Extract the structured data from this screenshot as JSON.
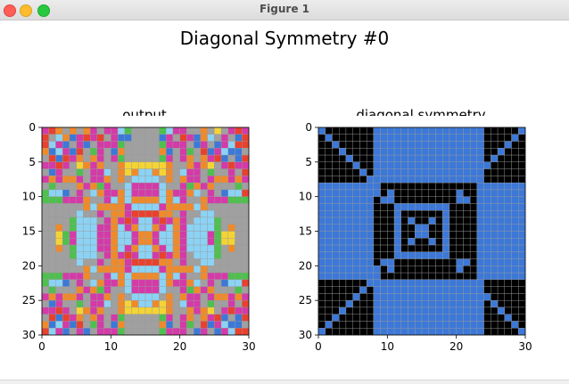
{
  "window": {
    "title": "Figure 1",
    "buttons": [
      "close-button",
      "minimize-button",
      "zoom-button"
    ]
  },
  "figure": {
    "suptitle": "Diagonal Symmetry #0"
  },
  "palette": {
    "0": "#000000",
    "1": "#3c78d8",
    "2": "#e8412e",
    "3": "#4ec04e",
    "4": "#f4d435",
    "5": "#a0a0a0",
    "6": "#d43aa8",
    "7": "#ef8a2b",
    "8": "#8bd3f5",
    "9": "#8b1a1a"
  },
  "chart_data": [
    {
      "type": "heatmap",
      "title": "output",
      "xlim": [
        0,
        30
      ],
      "ylim": [
        30,
        0
      ],
      "xticks": [
        0,
        10,
        20,
        30
      ],
      "yticks": [
        0,
        5,
        10,
        15,
        20,
        25,
        30
      ],
      "size": 30,
      "cells": [
        "627575765668355553866557545626",
        "258716262561155551652617856512",
        "286156156663555553666516516822",
        "718612536517555557156352168115",
        "521267576563555553656757621512",
        "662654767557444444755767456266",
        "516553566857478874758665355652",
        "676776566757588885757665677676",
        "535557673655866668556376755535",
        "388156587667866668766785651882",
        "333666755687877778786557666333",
        "555555787777688886777787555555",
        "555558556577622227756558855555",
        "555538885676268862676588835555",
        "557538886678678876876888835755",
        "554368886678867768876888634455",
        "554368886678867768876888634455",
        "557538886678678876876888835755",
        "555538885676268862676588835555",
        "555558556577622227756558855555",
        "555555787777688886777787555555",
        "333666755687877778786557666333",
        "388156587667866668766785651882",
        "535557673655866668556376755535",
        "676776566757588885757665677676",
        "516553566857478874758665355652",
        "662654767557444444755767456266",
        "521267576563555553656757621512",
        "718612536517555557156352168115",
        "286156156663555553666516516822"
      ]
    },
    {
      "type": "heatmap",
      "title": "diagonal symmetry",
      "xlim": [
        0,
        30
      ],
      "ylim": [
        30,
        0
      ],
      "xticks": [
        0,
        10,
        20,
        30
      ],
      "yticks": [
        0,
        5,
        10,
        15,
        20,
        25,
        30
      ],
      "size": 30,
      "cells": [
        "100000001111111111111111000001",
        "010000001111111111111111000010",
        "001000001111111111111111000100",
        "000100001111111111111111001000",
        "000010001111111111111111010000",
        "000001001111111111111111100000",
        "000000101111111111111111000000",
        "000000011111111111111111000000",
        "111111111000000000000001111111",
        "111111111010000000001001111111",
        "111111110110000000001101111111",
        "111111110001111111100001111111",
        "111111110001000000100001111111",
        "111111110001010010100001111111",
        "111111110001001100100001111111",
        "111111110001001100100001111111",
        "111111110001010010100001111111",
        "111111110001000000100001111111",
        "111111110001111111100001111111",
        "111111110110000000001101111111",
        "111111111010000000001001111111",
        "111111111000000000000001111111",
        "000000011111111111111111000000",
        "000000101111111111111111000000",
        "000001001111111111111111100000",
        "000010001111111111111111010000",
        "000100001111111111111111001000",
        "001000001111111111111111000100",
        "010000001111111111111111000010",
        "100000001111111111111111000001"
      ]
    }
  ]
}
